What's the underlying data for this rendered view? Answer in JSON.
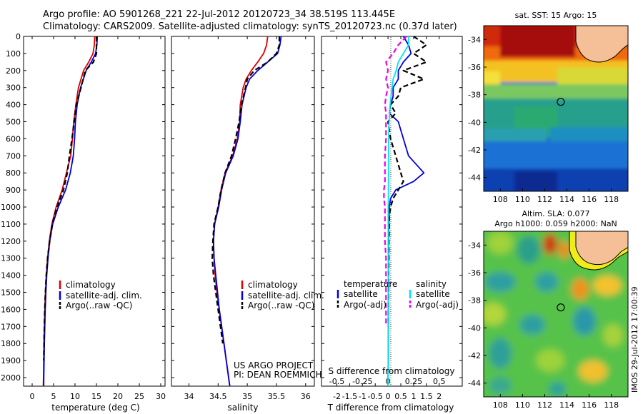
{
  "header": {
    "title_line1": "Argo profile: AO 5901268_221 22-Jul-2012 20120723_34 38.519S 113.445E",
    "title_line2": "Climatology: CARS2009. Satellite-adjusted climatology: synTS_20120723.nc (0.37d later)"
  },
  "colors": {
    "climatology": "#dd0000",
    "satellite": "#0000dd",
    "argo": "#000000",
    "salinity_satellite": "#00e5ee",
    "salinity_argo": "#ee00ee"
  },
  "project": {
    "line1": "US ARGO PROJECT",
    "line2": "PI: DEAN ROEMMICH"
  },
  "legend_profiles": [
    "climatology",
    "satellite-adj. clim.",
    "Argo(..raw -QC)"
  ],
  "legend_diff": {
    "temperature_title": "temperature",
    "salinity_title": "salinity",
    "satellite": "satellite",
    "argo": "Argo(-adj)"
  },
  "maps": {
    "sst_title": "sat. SST: 15 Argo: 15",
    "sla_title_line1": "Altim. SLA: 0.077",
    "sla_title_line2": "Argo h1000: 0.059 h2000: NaN",
    "timestamp": "IMOS 29-Jul-2012 17:00:39",
    "y_ticks": [
      "-34",
      "-36",
      "-38",
      "-40",
      "-42",
      "-44"
    ],
    "x_ticks": [
      "108",
      "110",
      "112",
      "114",
      "116",
      "118"
    ],
    "float_position": {
      "lon": 113.445,
      "lat": -38.519
    }
  },
  "chart_data": [
    {
      "type": "line",
      "panel": "temperature",
      "xlabel": "temperature (deg C)",
      "xlim": [
        -2,
        31
      ],
      "ylim": [
        2050,
        0
      ],
      "x_ticks": [
        "0",
        "5",
        "10",
        "15",
        "20",
        "25",
        "30"
      ],
      "y_ticks": [
        "0",
        "100",
        "200",
        "300",
        "400",
        "500",
        "600",
        "700",
        "800",
        "900",
        "1000",
        "1100",
        "1200",
        "1300",
        "1400",
        "1500",
        "1600",
        "1700",
        "1800",
        "1900",
        "2000"
      ],
      "depth": [
        0,
        50,
        100,
        150,
        200,
        300,
        400,
        500,
        600,
        700,
        800,
        900,
        1000,
        1100,
        1200,
        1300,
        1400,
        1500,
        1600,
        1700,
        1800,
        1900,
        2000,
        2050
      ],
      "series": [
        {
          "name": "climatology",
          "style": "solid",
          "x": [
            14.6,
            14.5,
            14.2,
            13.2,
            12.0,
            10.8,
            10.2,
            9.7,
            9.4,
            9.0,
            8.0,
            7.0,
            5.6,
            4.6,
            4.0,
            3.6,
            3.3,
            3.1,
            2.95,
            2.85,
            2.75,
            2.7,
            2.65,
            2.6
          ]
        },
        {
          "name": "satellite-adj. clim.",
          "style": "solid",
          "x": [
            15.2,
            15.1,
            14.8,
            13.8,
            12.6,
            11.3,
            10.5,
            10.1,
            9.9,
            9.6,
            8.9,
            7.8,
            6.1,
            4.8,
            4.1,
            3.7,
            3.4,
            3.2,
            3.05,
            2.95,
            2.85,
            2.78,
            2.72,
            2.7
          ]
        },
        {
          "name": "Argo(..raw -QC)",
          "style": "dashed",
          "x": [
            15.0,
            15.0,
            15.0,
            14.3,
            12.4,
            11.4,
            10.3,
            9.8,
            9.3,
            8.7,
            8.2,
            7.3,
            5.8,
            4.7,
            4.1,
            3.6,
            3.3,
            3.1,
            2.95,
            2.85,
            2.78,
            2.72
          ]
        }
      ]
    },
    {
      "type": "line",
      "panel": "salinity",
      "xlabel": "salinity",
      "xlim": [
        33.7,
        36.15
      ],
      "ylim": [
        2050,
        0
      ],
      "x_ticks": [
        "34",
        "34.5",
        "35",
        "35.5",
        "36"
      ],
      "depth": [
        0,
        50,
        100,
        150,
        200,
        250,
        300,
        400,
        500,
        600,
        700,
        800,
        900,
        1000,
        1100,
        1200,
        1300,
        1400,
        1500,
        1600,
        1700,
        1800,
        1900,
        2000,
        2050
      ],
      "series": [
        {
          "name": "climatology",
          "style": "solid",
          "x": [
            35.35,
            35.33,
            35.28,
            35.18,
            35.07,
            34.98,
            34.93,
            34.88,
            34.87,
            34.83,
            34.75,
            34.62,
            34.55,
            34.5,
            34.44,
            34.42,
            34.43,
            34.45,
            34.48,
            34.52,
            34.56,
            34.6,
            34.64,
            34.68,
            34.7
          ]
        },
        {
          "name": "satellite-adj. clim.",
          "style": "solid",
          "x": [
            35.58,
            35.56,
            35.52,
            35.35,
            35.18,
            35.04,
            34.98,
            34.91,
            34.88,
            34.84,
            34.76,
            34.63,
            34.56,
            34.51,
            34.44,
            34.42,
            34.43,
            34.46,
            34.49,
            34.52,
            34.56,
            34.6,
            34.64,
            34.68,
            34.7
          ]
        },
        {
          "name": "Argo(..raw -QC)",
          "style": "dashed",
          "x": [
            35.55,
            35.55,
            35.5,
            35.35,
            35.12,
            35.0,
            34.97,
            34.9,
            34.86,
            34.8,
            34.73,
            34.62,
            34.55,
            34.5,
            34.43,
            34.41,
            34.4,
            34.42,
            34.46,
            34.5,
            34.54,
            34.58
          ]
        }
      ]
    },
    {
      "type": "line",
      "panel": "difference",
      "xlabel": "T difference from climatology",
      "x2label": "S difference from climatology",
      "xlim": [
        -2.6,
        2.9
      ],
      "x2lim": [
        -0.65,
        0.725
      ],
      "ylim": [
        2050,
        0
      ],
      "x_ticks": [
        "-2",
        "-1.5",
        "-1",
        "-0.5",
        "0",
        "0.5",
        "1",
        "1.5",
        "2"
      ],
      "x2_ticks": [
        "-0.5",
        "-0.25",
        "0",
        "0.25",
        "0.5"
      ],
      "depth": [
        0,
        50,
        100,
        150,
        200,
        250,
        300,
        350,
        400,
        450,
        500,
        600,
        700,
        800,
        850,
        900,
        950,
        1000,
        1050,
        1100,
        1200,
        1300,
        1400,
        1500,
        1600,
        1700,
        1800,
        1900,
        2000,
        2050
      ],
      "series": [
        {
          "name": "temperature satellite",
          "axis": "T",
          "style": "solid",
          "x": [
            0.6,
            0.8,
            0.9,
            0.6,
            0.4,
            0.4,
            0.2,
            0.2,
            0.1,
            0.05,
            0.4,
            0.6,
            0.8,
            1.4,
            1.0,
            0.3,
            0.1,
            0.05,
            0.04,
            0.03,
            0.02,
            0.02,
            0.01,
            0.01,
            0.01,
            0.01,
            0.01,
            0.01,
            0.0,
            0.0
          ]
        },
        {
          "name": "temperature Argo(-adj)",
          "axis": "T",
          "style": "dashed",
          "x": [
            1.0,
            1.5,
            1.0,
            1.5,
            0.6,
            1.4,
            0.5,
            0.4,
            0.1,
            0.3,
            0.0,
            0.1,
            0.3,
            0.5,
            0.6,
            0.4,
            0.2,
            0.1,
            0.05,
            0.05,
            0.03,
            0.03,
            0.02,
            0.02,
            0.01,
            0.01
          ]
        },
        {
          "name": "salinity satellite",
          "axis": "S",
          "style": "solid",
          "x": [
            0.2,
            0.2,
            0.15,
            0.1,
            0.08,
            0.05,
            0.04,
            0.03,
            0.02,
            0.015,
            0.01,
            0.005,
            0.005,
            0.004,
            0.004,
            0.003,
            0.003,
            0.002,
            0.002,
            0.002,
            0.002,
            0.002,
            0.002,
            0.001,
            0.001,
            0.001,
            0.001,
            0.001,
            0.0,
            0.0
          ]
        },
        {
          "name": "salinity Argo(-adj)",
          "axis": "S",
          "style": "dashed",
          "x": [
            0.18,
            0.1,
            0.05,
            -0.02,
            0.0,
            -0.02,
            0.0,
            -0.02,
            -0.03,
            -0.02,
            -0.02,
            -0.02,
            -0.03,
            -0.03,
            -0.03,
            -0.04,
            -0.04,
            -0.03,
            -0.03,
            -0.03,
            -0.03,
            -0.02,
            -0.02,
            -0.02,
            -0.02,
            -0.02
          ]
        }
      ]
    }
  ]
}
